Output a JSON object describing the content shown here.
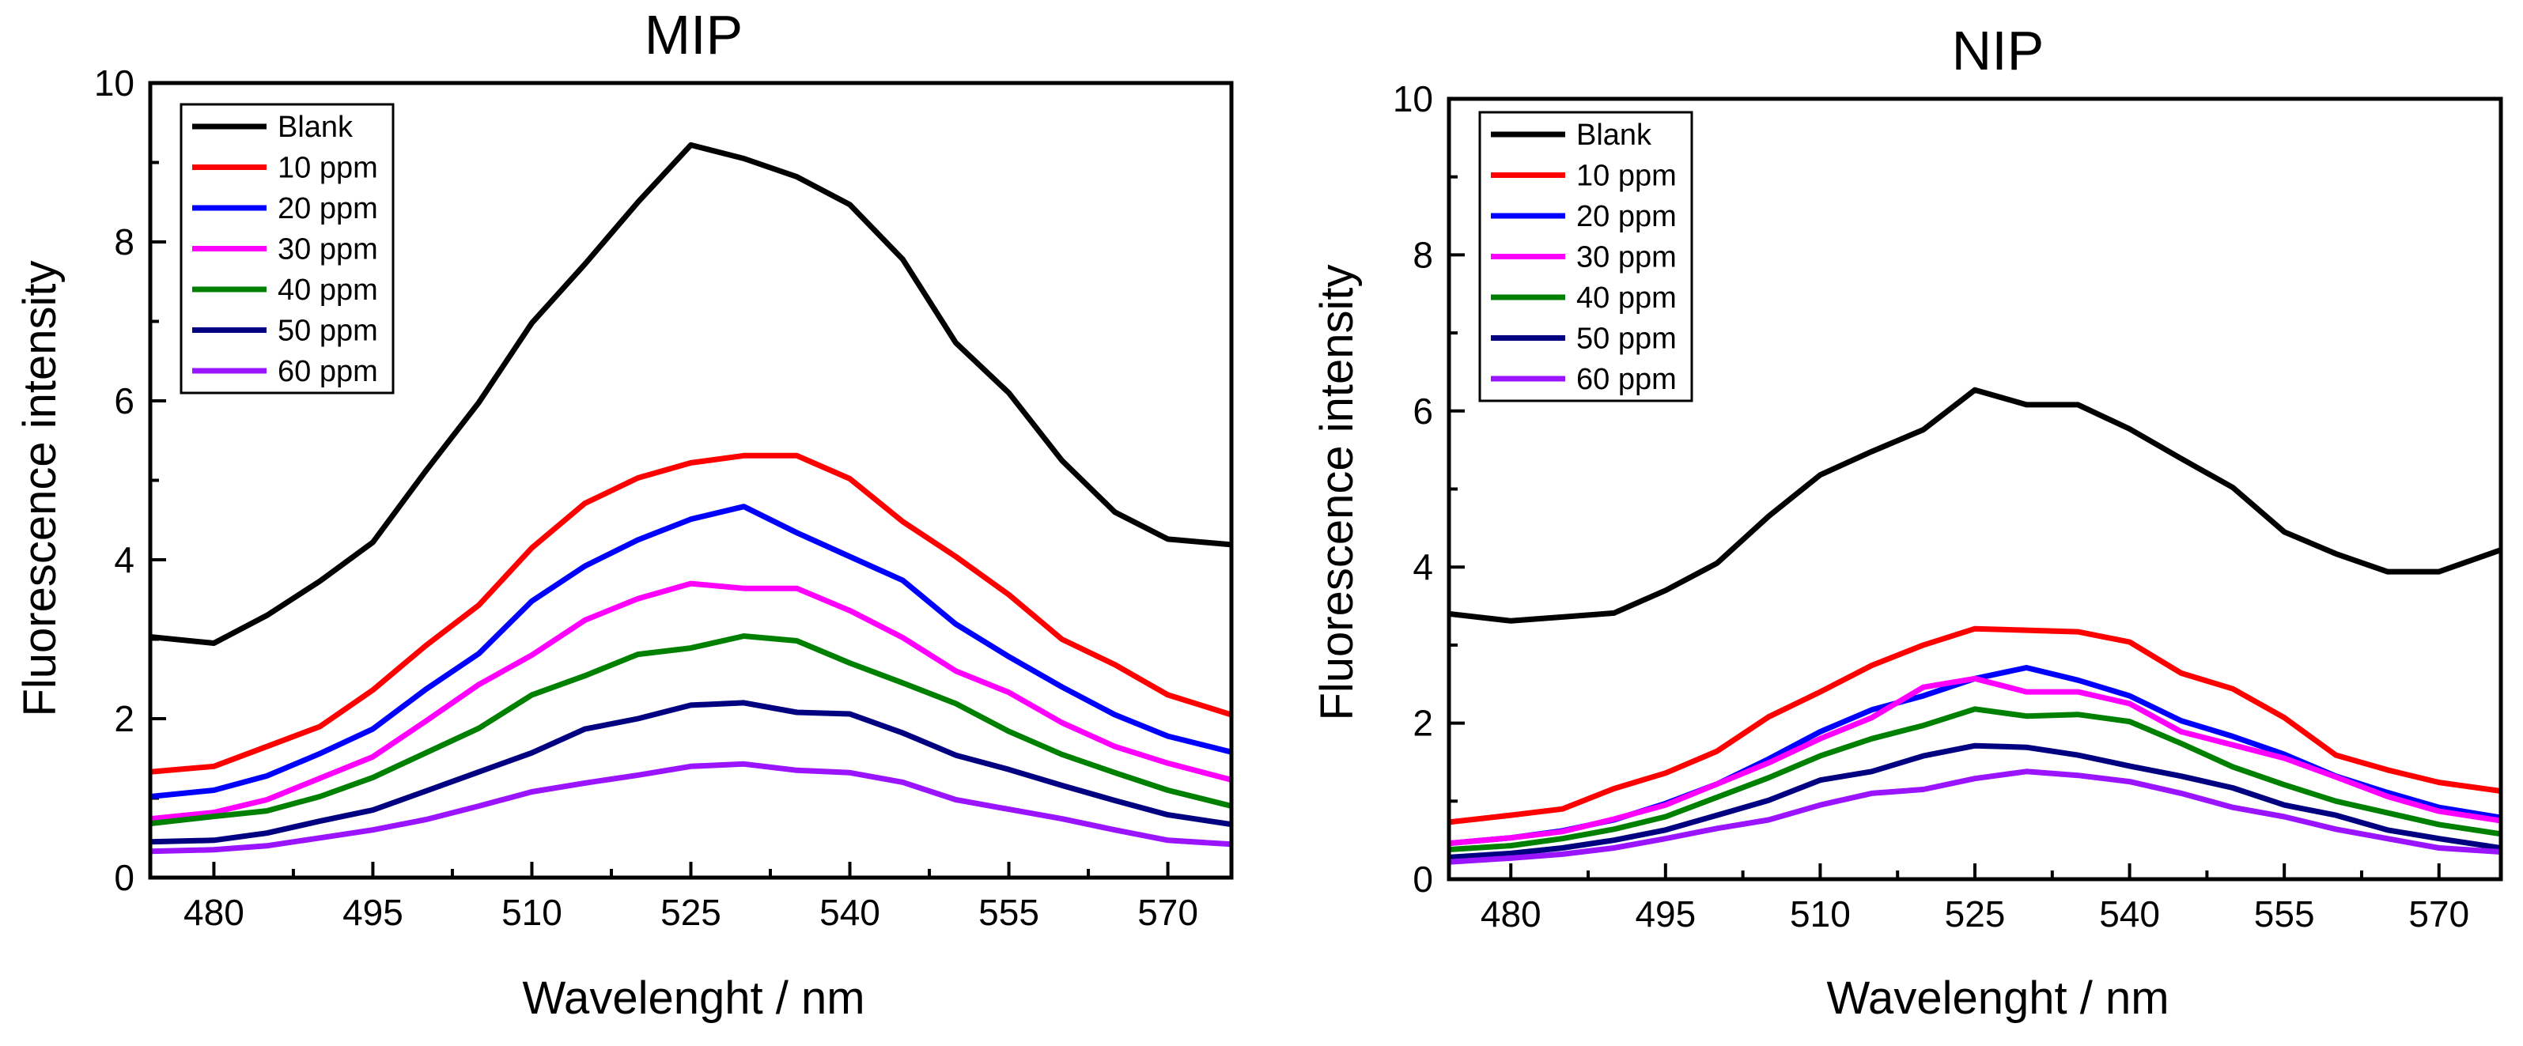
{
  "chart_data": [
    {
      "type": "line",
      "title": "MIP",
      "xlabel": "Wavelenght / nm",
      "ylabel": "Fluorescence intensity",
      "xlim": [
        474,
        576
      ],
      "ylim": [
        0,
        10
      ],
      "xticks": [
        480,
        495,
        510,
        525,
        540,
        555,
        570
      ],
      "yticks": [
        0,
        2,
        4,
        6,
        8,
        10
      ],
      "legend_position": "top-left",
      "x": [
        474,
        480,
        485,
        490,
        495,
        500,
        505,
        510,
        515,
        520,
        525,
        530,
        535,
        540,
        545,
        550,
        555,
        560,
        565,
        570,
        576
      ],
      "series": [
        {
          "name": "Blank",
          "color": "#000000",
          "values": [
            3.03,
            2.95,
            3.3,
            3.73,
            4.22,
            5.12,
            5.98,
            6.98,
            7.72,
            8.5,
            9.22,
            9.05,
            8.82,
            8.47,
            7.78,
            6.73,
            6.1,
            5.25,
            4.6,
            4.26,
            4.19
          ]
        },
        {
          "name": "10 ppm",
          "color": "#ff0000",
          "values": [
            1.33,
            1.4,
            1.65,
            1.9,
            2.36,
            2.92,
            3.43,
            4.15,
            4.71,
            5.03,
            5.22,
            5.31,
            5.31,
            5.02,
            4.48,
            4.04,
            3.56,
            3.0,
            2.68,
            2.3,
            2.05
          ]
        },
        {
          "name": "20 ppm",
          "color": "#0000ff",
          "values": [
            1.02,
            1.1,
            1.28,
            1.56,
            1.87,
            2.37,
            2.82,
            3.48,
            3.92,
            4.25,
            4.51,
            4.67,
            4.34,
            4.04,
            3.74,
            3.19,
            2.78,
            2.4,
            2.05,
            1.78,
            1.58
          ]
        },
        {
          "name": "30 ppm",
          "color": "#ff00ff",
          "values": [
            0.74,
            0.82,
            0.98,
            1.25,
            1.52,
            1.97,
            2.43,
            2.8,
            3.24,
            3.51,
            3.7,
            3.64,
            3.64,
            3.36,
            3.02,
            2.6,
            2.33,
            1.95,
            1.65,
            1.44,
            1.23
          ]
        },
        {
          "name": "40 ppm",
          "color": "#008000",
          "values": [
            0.68,
            0.77,
            0.84,
            1.02,
            1.26,
            1.57,
            1.88,
            2.3,
            2.54,
            2.81,
            2.89,
            3.04,
            2.98,
            2.7,
            2.45,
            2.19,
            1.84,
            1.55,
            1.32,
            1.1,
            0.9
          ]
        },
        {
          "name": "50 ppm",
          "color": "#000080",
          "values": [
            0.45,
            0.47,
            0.56,
            0.71,
            0.85,
            1.09,
            1.33,
            1.57,
            1.87,
            2.0,
            2.17,
            2.2,
            2.08,
            2.06,
            1.82,
            1.54,
            1.36,
            1.16,
            0.97,
            0.79,
            0.67
          ]
        },
        {
          "name": "60 ppm",
          "color": "#9b14ff",
          "values": [
            0.33,
            0.35,
            0.4,
            0.5,
            0.6,
            0.73,
            0.9,
            1.08,
            1.19,
            1.29,
            1.4,
            1.43,
            1.35,
            1.32,
            1.2,
            0.98,
            0.86,
            0.74,
            0.6,
            0.47,
            0.42
          ]
        }
      ]
    },
    {
      "type": "line",
      "title": "NIP",
      "xlabel": "Wavelenght / nm",
      "ylabel": "Fluorescence intensity",
      "xlim": [
        474,
        576
      ],
      "ylim": [
        0,
        10
      ],
      "xticks": [
        480,
        495,
        510,
        525,
        540,
        555,
        570
      ],
      "yticks": [
        0,
        2,
        4,
        6,
        8,
        10
      ],
      "legend_position": "top-left",
      "x": [
        474,
        480,
        485,
        490,
        495,
        500,
        505,
        510,
        515,
        520,
        525,
        530,
        535,
        540,
        545,
        550,
        555,
        560,
        565,
        570,
        576
      ],
      "series": [
        {
          "name": "Blank",
          "color": "#000000",
          "values": [
            3.4,
            3.31,
            3.36,
            3.41,
            3.7,
            4.05,
            4.65,
            5.18,
            5.48,
            5.76,
            6.27,
            6.08,
            6.08,
            5.77,
            5.39,
            5.02,
            4.45,
            4.17,
            3.94,
            3.94,
            4.22
          ]
        },
        {
          "name": "10 ppm",
          "color": "#ff0000",
          "values": [
            0.73,
            0.82,
            0.9,
            1.16,
            1.36,
            1.64,
            2.08,
            2.4,
            2.74,
            3.0,
            3.21,
            3.19,
            3.17,
            3.04,
            2.64,
            2.44,
            2.07,
            1.59,
            1.4,
            1.24,
            1.13
          ]
        },
        {
          "name": "20 ppm",
          "color": "#0000ff",
          "values": [
            0.46,
            0.53,
            0.62,
            0.76,
            0.97,
            1.22,
            1.54,
            1.89,
            2.17,
            2.35,
            2.57,
            2.71,
            2.55,
            2.35,
            2.03,
            1.83,
            1.6,
            1.32,
            1.11,
            0.92,
            0.79
          ]
        },
        {
          "name": "30 ppm",
          "color": "#ff00ff",
          "values": [
            0.46,
            0.53,
            0.61,
            0.77,
            0.95,
            1.22,
            1.49,
            1.8,
            2.07,
            2.46,
            2.57,
            2.4,
            2.4,
            2.25,
            1.89,
            1.72,
            1.55,
            1.31,
            1.06,
            0.87,
            0.75
          ]
        },
        {
          "name": "40 ppm",
          "color": "#008000",
          "values": [
            0.38,
            0.43,
            0.52,
            0.64,
            0.8,
            1.05,
            1.3,
            1.58,
            1.8,
            1.97,
            2.18,
            2.09,
            2.11,
            2.02,
            1.74,
            1.44,
            1.21,
            1.0,
            0.85,
            0.7,
            0.58
          ]
        },
        {
          "name": "50 ppm",
          "color": "#000080",
          "values": [
            0.28,
            0.33,
            0.4,
            0.5,
            0.63,
            0.82,
            1.01,
            1.27,
            1.38,
            1.58,
            1.71,
            1.69,
            1.59,
            1.45,
            1.32,
            1.17,
            0.95,
            0.82,
            0.63,
            0.52,
            0.4
          ]
        },
        {
          "name": "60 ppm",
          "color": "#9b14ff",
          "values": [
            0.22,
            0.27,
            0.32,
            0.4,
            0.52,
            0.65,
            0.76,
            0.95,
            1.1,
            1.15,
            1.29,
            1.38,
            1.33,
            1.25,
            1.1,
            0.92,
            0.8,
            0.64,
            0.52,
            0.4,
            0.35
          ]
        }
      ]
    }
  ]
}
